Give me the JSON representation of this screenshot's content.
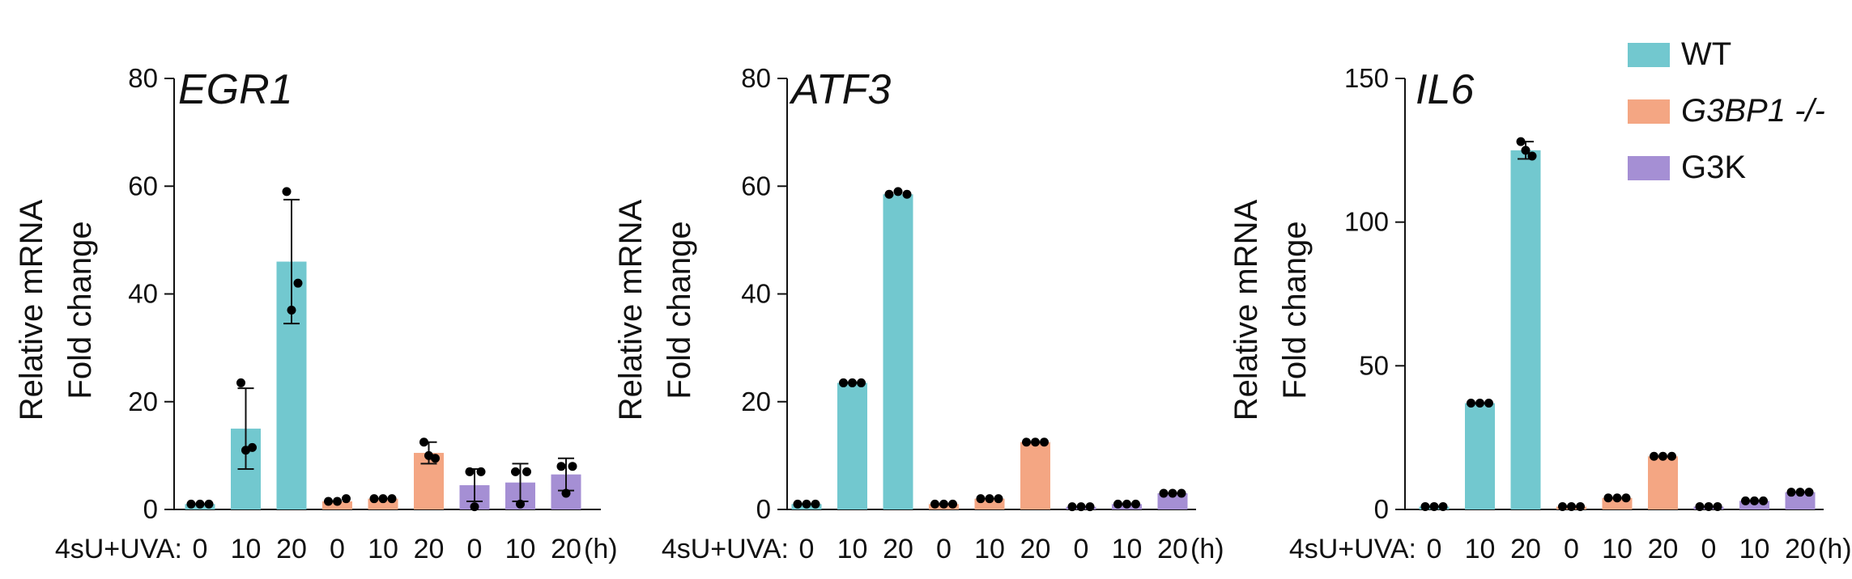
{
  "chart_data": [
    {
      "type": "bar",
      "title": "EGR1",
      "ylabel": [
        "Relative mRNA",
        "Fold change"
      ],
      "ylim": [
        0,
        80
      ],
      "yticks": [
        0,
        20,
        40,
        60,
        80
      ],
      "x_prefix": "4sU+UVA:",
      "x_unit": "(h)",
      "categories": [
        "0",
        "10",
        "20",
        "0",
        "10",
        "20",
        "0",
        "10",
        "20"
      ],
      "group": [
        "WT",
        "WT",
        "WT",
        "G3BP1 -/-",
        "G3BP1 -/-",
        "G3BP1 -/-",
        "G3K",
        "G3K",
        "G3K"
      ],
      "values": [
        1,
        15,
        46,
        1.5,
        2,
        10.5,
        4.5,
        5,
        6.5
      ],
      "error": [
        null,
        7.5,
        11.5,
        null,
        null,
        2,
        3,
        3.5,
        3
      ],
      "points": [
        [
          1,
          1,
          1
        ],
        [
          23.5,
          11.5,
          11
        ],
        [
          59,
          42,
          37
        ],
        [
          1.5,
          1.5,
          2
        ],
        [
          2,
          2,
          2
        ],
        [
          12.5,
          9.5,
          10
        ],
        [
          7,
          7,
          0.5
        ],
        [
          7,
          7,
          1
        ],
        [
          8,
          8,
          3
        ]
      ]
    },
    {
      "type": "bar",
      "title": "ATF3",
      "ylabel": [
        "Relative mRNA",
        "Fold change"
      ],
      "ylim": [
        0,
        80
      ],
      "yticks": [
        0,
        20,
        40,
        60,
        80
      ],
      "x_prefix": "4sU+UVA:",
      "x_unit": "(h)",
      "categories": [
        "0",
        "10",
        "20",
        "0",
        "10",
        "20",
        "0",
        "10",
        "20"
      ],
      "group": [
        "WT",
        "WT",
        "WT",
        "G3BP1 -/-",
        "G3BP1 -/-",
        "G3BP1 -/-",
        "G3K",
        "G3K",
        "G3K"
      ],
      "values": [
        1,
        23.5,
        58.5,
        1,
        2,
        12.5,
        0.5,
        1,
        3
      ],
      "error": [
        null,
        null,
        null,
        null,
        null,
        null,
        null,
        null,
        null
      ],
      "points": [
        [
          1,
          1,
          1
        ],
        [
          23.5,
          23.5,
          23.5
        ],
        [
          58.5,
          59,
          58.5
        ],
        [
          1,
          1,
          1
        ],
        [
          2,
          2,
          2
        ],
        [
          12.5,
          12.5,
          12.5
        ],
        [
          0.5,
          0.5,
          0.5
        ],
        [
          1,
          1,
          1
        ],
        [
          3,
          3,
          3
        ]
      ]
    },
    {
      "type": "bar",
      "title": "IL6",
      "ylabel": [
        "Relative mRNA",
        "Fold change"
      ],
      "ylim": [
        0,
        150
      ],
      "yticks": [
        0,
        50,
        100,
        150
      ],
      "x_prefix": "4sU+UVA:",
      "x_unit": "(h)",
      "categories": [
        "0",
        "10",
        "20",
        "0",
        "10",
        "20",
        "0",
        "10",
        "20"
      ],
      "group": [
        "WT",
        "WT",
        "WT",
        "G3BP1 -/-",
        "G3BP1 -/-",
        "G3BP1 -/-",
        "G3K",
        "G3K",
        "G3K"
      ],
      "values": [
        1,
        37,
        125,
        1,
        4,
        18.5,
        1,
        3,
        6
      ],
      "error": [
        null,
        null,
        3,
        null,
        null,
        null,
        null,
        null,
        null
      ],
      "points": [
        [
          1,
          1,
          1
        ],
        [
          37,
          37,
          37
        ],
        [
          128,
          123,
          125
        ],
        [
          1,
          1,
          1
        ],
        [
          4,
          4,
          4
        ],
        [
          18.5,
          18.5,
          18.5
        ],
        [
          1,
          1,
          1
        ],
        [
          3,
          3,
          3
        ],
        [
          6,
          6,
          6
        ]
      ]
    }
  ],
  "legend": {
    "placement": "top-right",
    "items": [
      {
        "label": "WT",
        "italic": false,
        "color": "#72c8cf"
      },
      {
        "label": "G3BP1 -/-",
        "italic": true,
        "color": "#f4a683"
      },
      {
        "label": "G3K",
        "italic": false,
        "color": "#a58fd4"
      }
    ]
  },
  "colors": {
    "WT": "#72c8cf",
    "G3BP1 -/-": "#f4a683",
    "G3K": "#a58fd4",
    "axis": "#111111"
  }
}
